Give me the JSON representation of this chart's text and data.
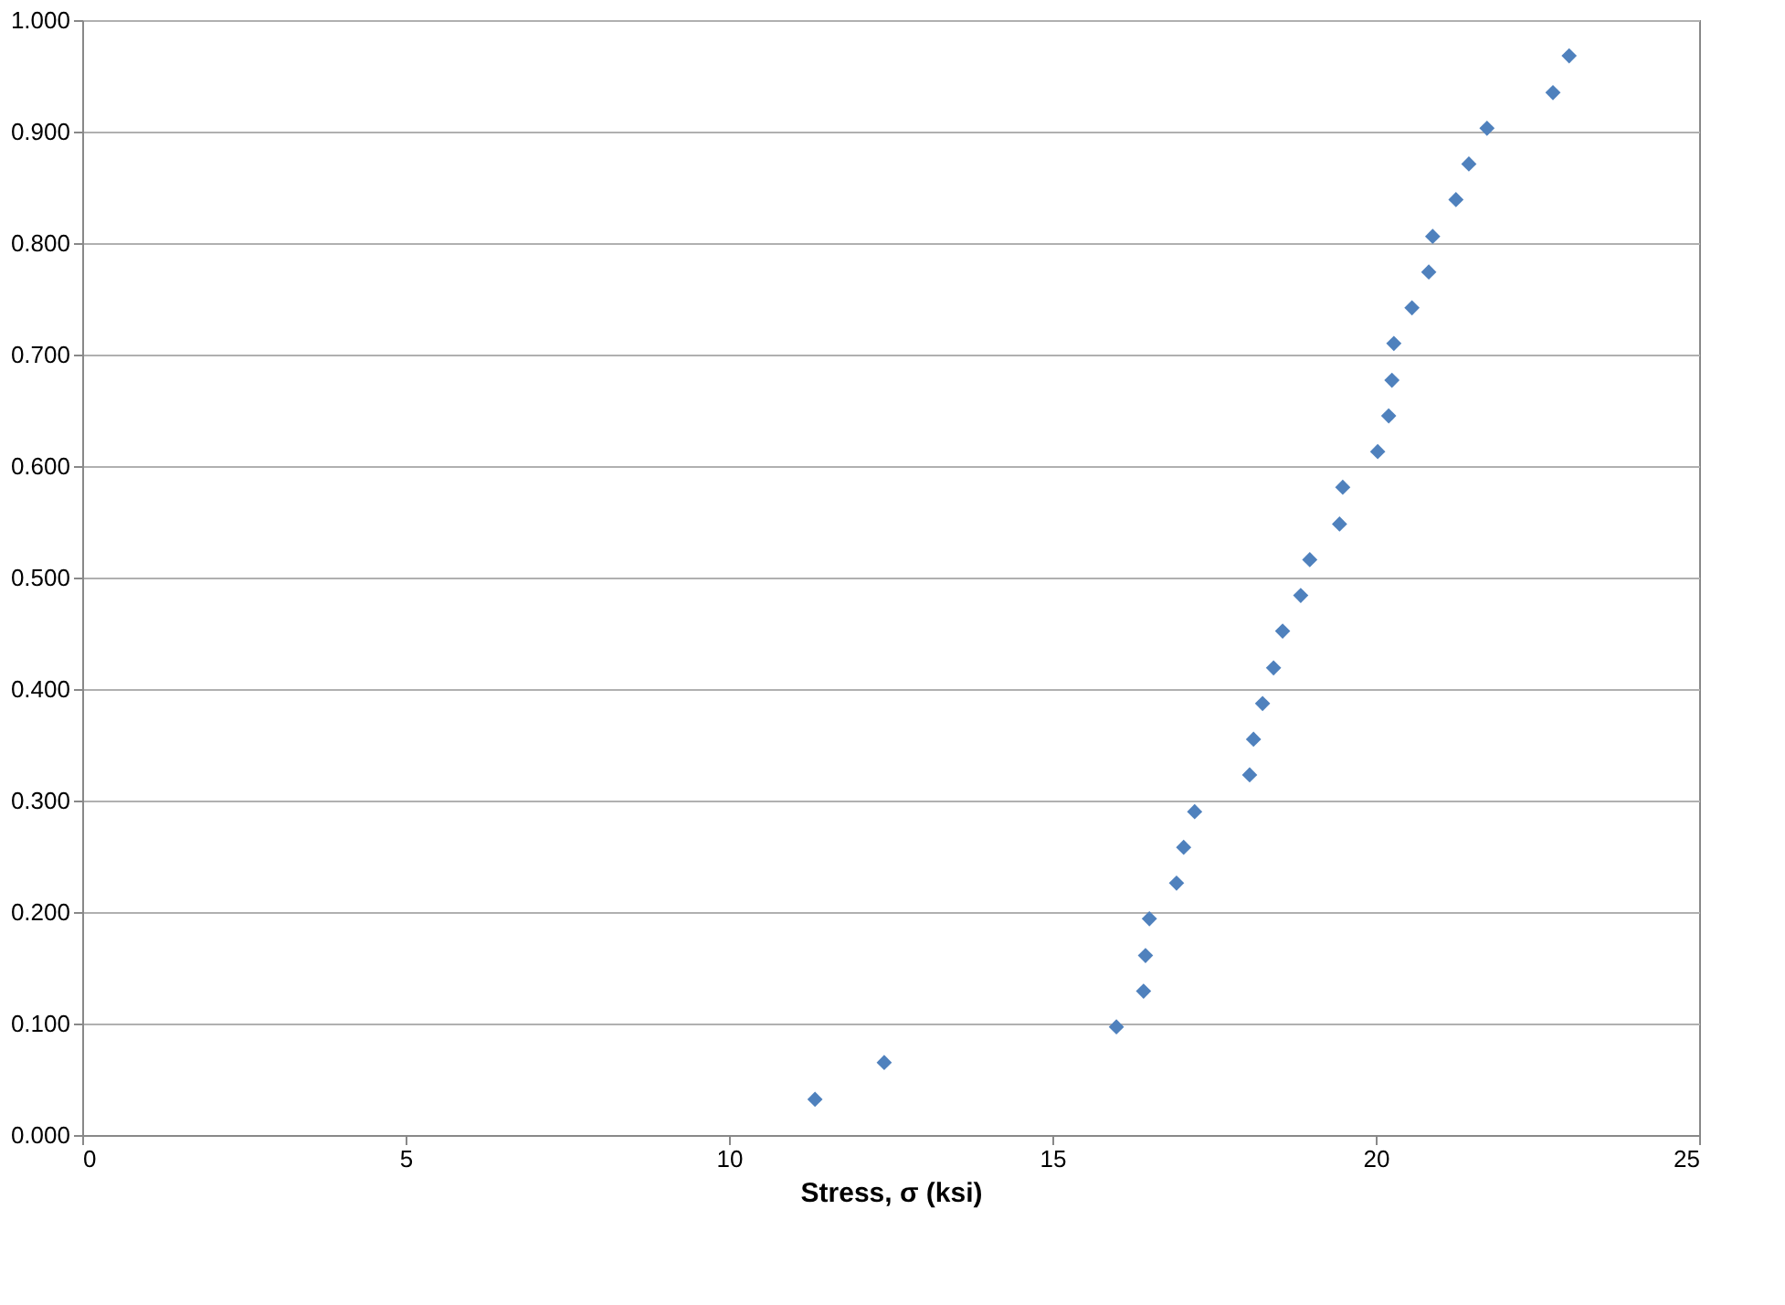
{
  "chart_data": {
    "type": "scatter",
    "xlabel": "Stress, σ (ksi)",
    "x": [
      11.33,
      12.4,
      15.99,
      16.41,
      16.44,
      16.5,
      16.92,
      17.03,
      17.2,
      18.05,
      18.11,
      18.25,
      18.42,
      18.56,
      18.84,
      18.98,
      19.44,
      19.49,
      20.03,
      20.2,
      20.25,
      20.28,
      20.56,
      20.82,
      20.88,
      21.24,
      21.44,
      21.72,
      22.74,
      22.99
    ],
    "series": [
      {
        "color": "#4f81bd",
        "values": [
          0.032,
          0.065,
          0.097,
          0.129,
          0.161,
          0.194,
          0.226,
          0.258,
          0.29,
          0.323,
          0.355,
          0.387,
          0.419,
          0.452,
          0.484,
          0.516,
          0.548,
          0.581,
          0.613,
          0.645,
          0.677,
          0.71,
          0.742,
          0.774,
          0.806,
          0.839,
          0.871,
          0.903,
          0.935,
          0.968
        ]
      }
    ],
    "xlim": [
      0,
      25
    ],
    "xticks": [
      0,
      5,
      10,
      15,
      20,
      25
    ],
    "ylim": [
      0,
      1
    ],
    "yticks": [
      {
        "value": 0,
        "label": "0.000"
      },
      {
        "value": 0.1,
        "label": "0.100"
      },
      {
        "value": 0.2,
        "label": "0.200"
      },
      {
        "value": 0.3,
        "label": "0.300"
      },
      {
        "value": 0.4,
        "label": "0.400"
      },
      {
        "value": 0.5,
        "label": "0.500"
      },
      {
        "value": 0.6,
        "label": "0.600"
      },
      {
        "value": 0.7,
        "label": "0.700"
      },
      {
        "value": 0.8,
        "label": "0.800"
      },
      {
        "value": 0.9,
        "label": "0.900"
      },
      {
        "value": 1,
        "label": "1.000"
      }
    ],
    "grid": "y",
    "marker": "diamond"
  }
}
